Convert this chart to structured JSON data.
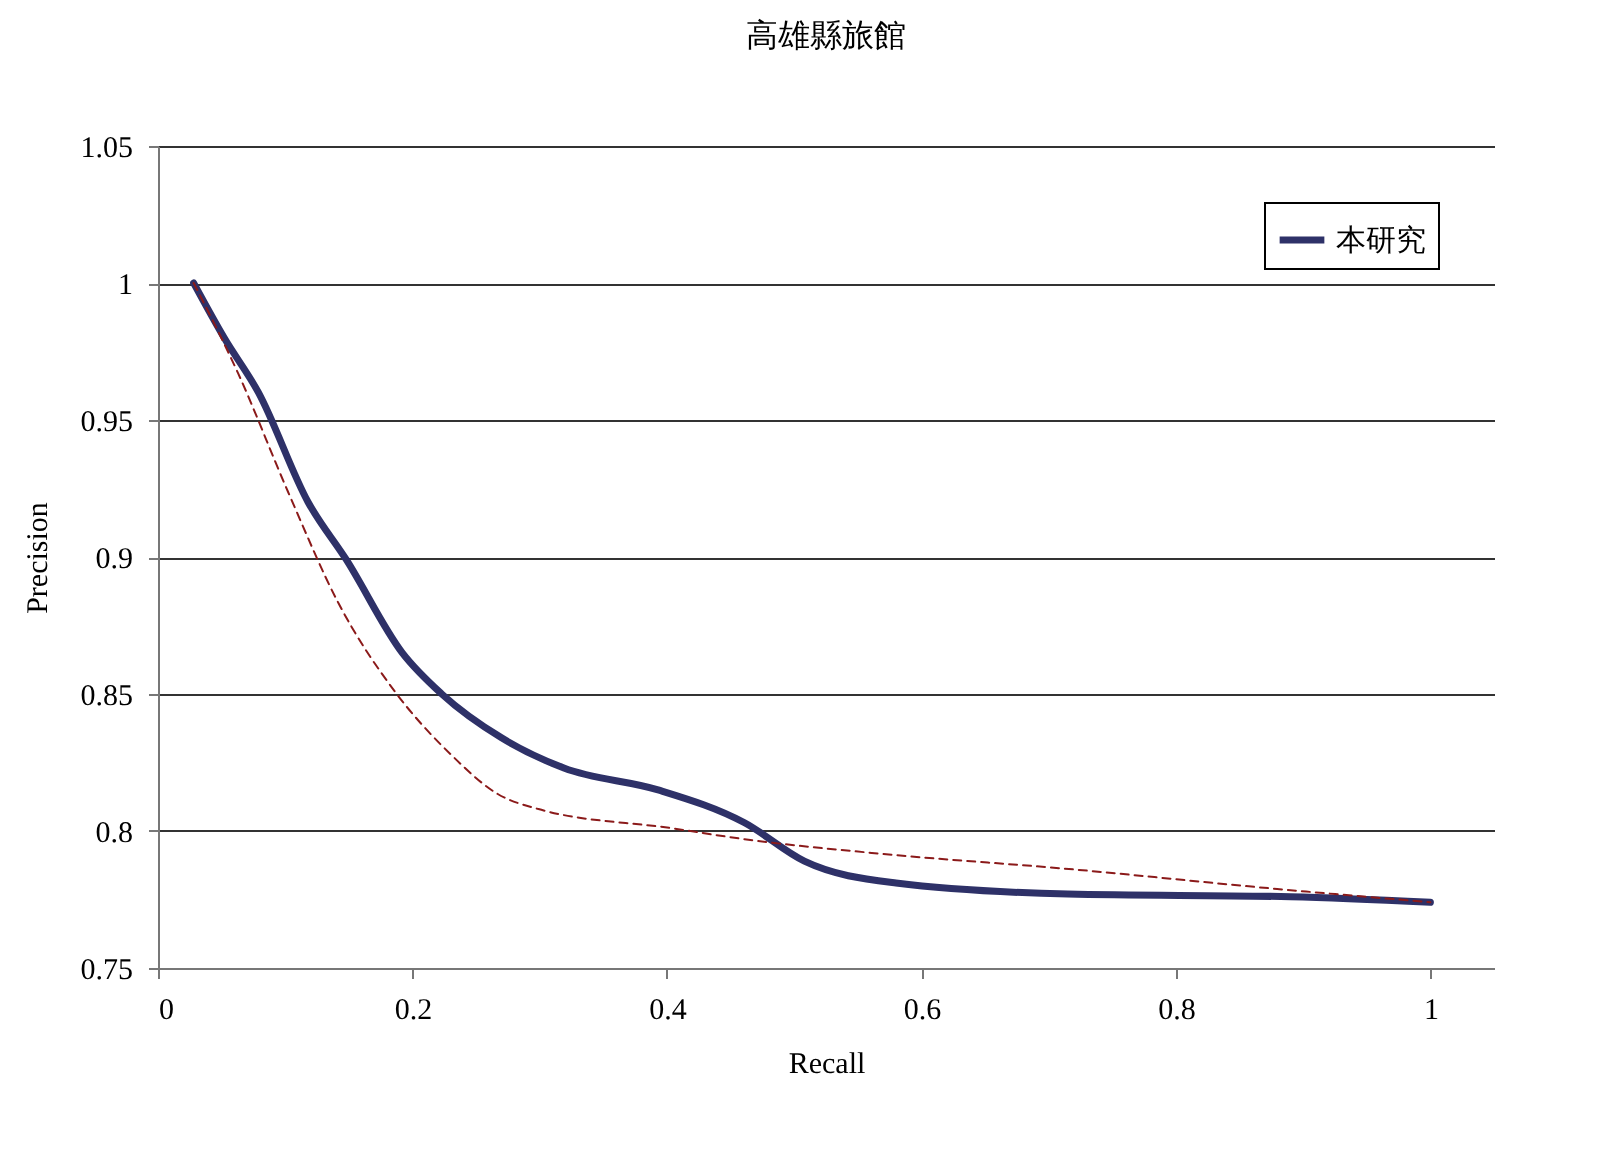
{
  "chart_data": {
    "type": "line",
    "title": "高雄縣旅館",
    "xlabel": "Recall",
    "ylabel": "Precision",
    "xlim": [
      0,
      1.05
    ],
    "xticks": [
      0,
      0.2,
      0.4,
      0.6,
      0.8,
      1
    ],
    "ylim": [
      0.75,
      1.05
    ],
    "yticks": [
      0.75,
      0.8,
      0.85,
      0.9,
      0.95,
      1,
      1.05
    ],
    "grid": "y",
    "legend": "top right",
    "series": [
      {
        "name": "本研究",
        "color": "#2e3168",
        "line_style": "solid",
        "x": [
          0.028,
          0.052,
          0.079,
          0.118,
          0.148,
          0.192,
          0.223,
          0.27,
          0.319,
          0.393,
          0.461,
          0.508,
          0.58,
          0.715,
          0.89,
          1.0
        ],
        "values": [
          1.0,
          0.98,
          0.96,
          0.92,
          0.899,
          0.865,
          0.85,
          0.834,
          0.823,
          0.815,
          0.803,
          0.789,
          0.781,
          0.777,
          0.776,
          0.774
        ]
      },
      {
        "color": "#8b1a1a",
        "line_style": "dashed",
        "x": [
          0.028,
          0.063,
          0.102,
          0.142,
          0.186,
          0.23,
          0.267,
          0.299,
          0.404,
          0.461,
          0.561,
          0.719,
          0.876,
          1.0
        ],
        "values": [
          1.0,
          0.967,
          0.924,
          0.883,
          0.851,
          0.828,
          0.8135,
          0.808,
          0.801,
          0.797,
          0.792,
          0.786,
          0.779,
          0.774
        ]
      }
    ]
  }
}
